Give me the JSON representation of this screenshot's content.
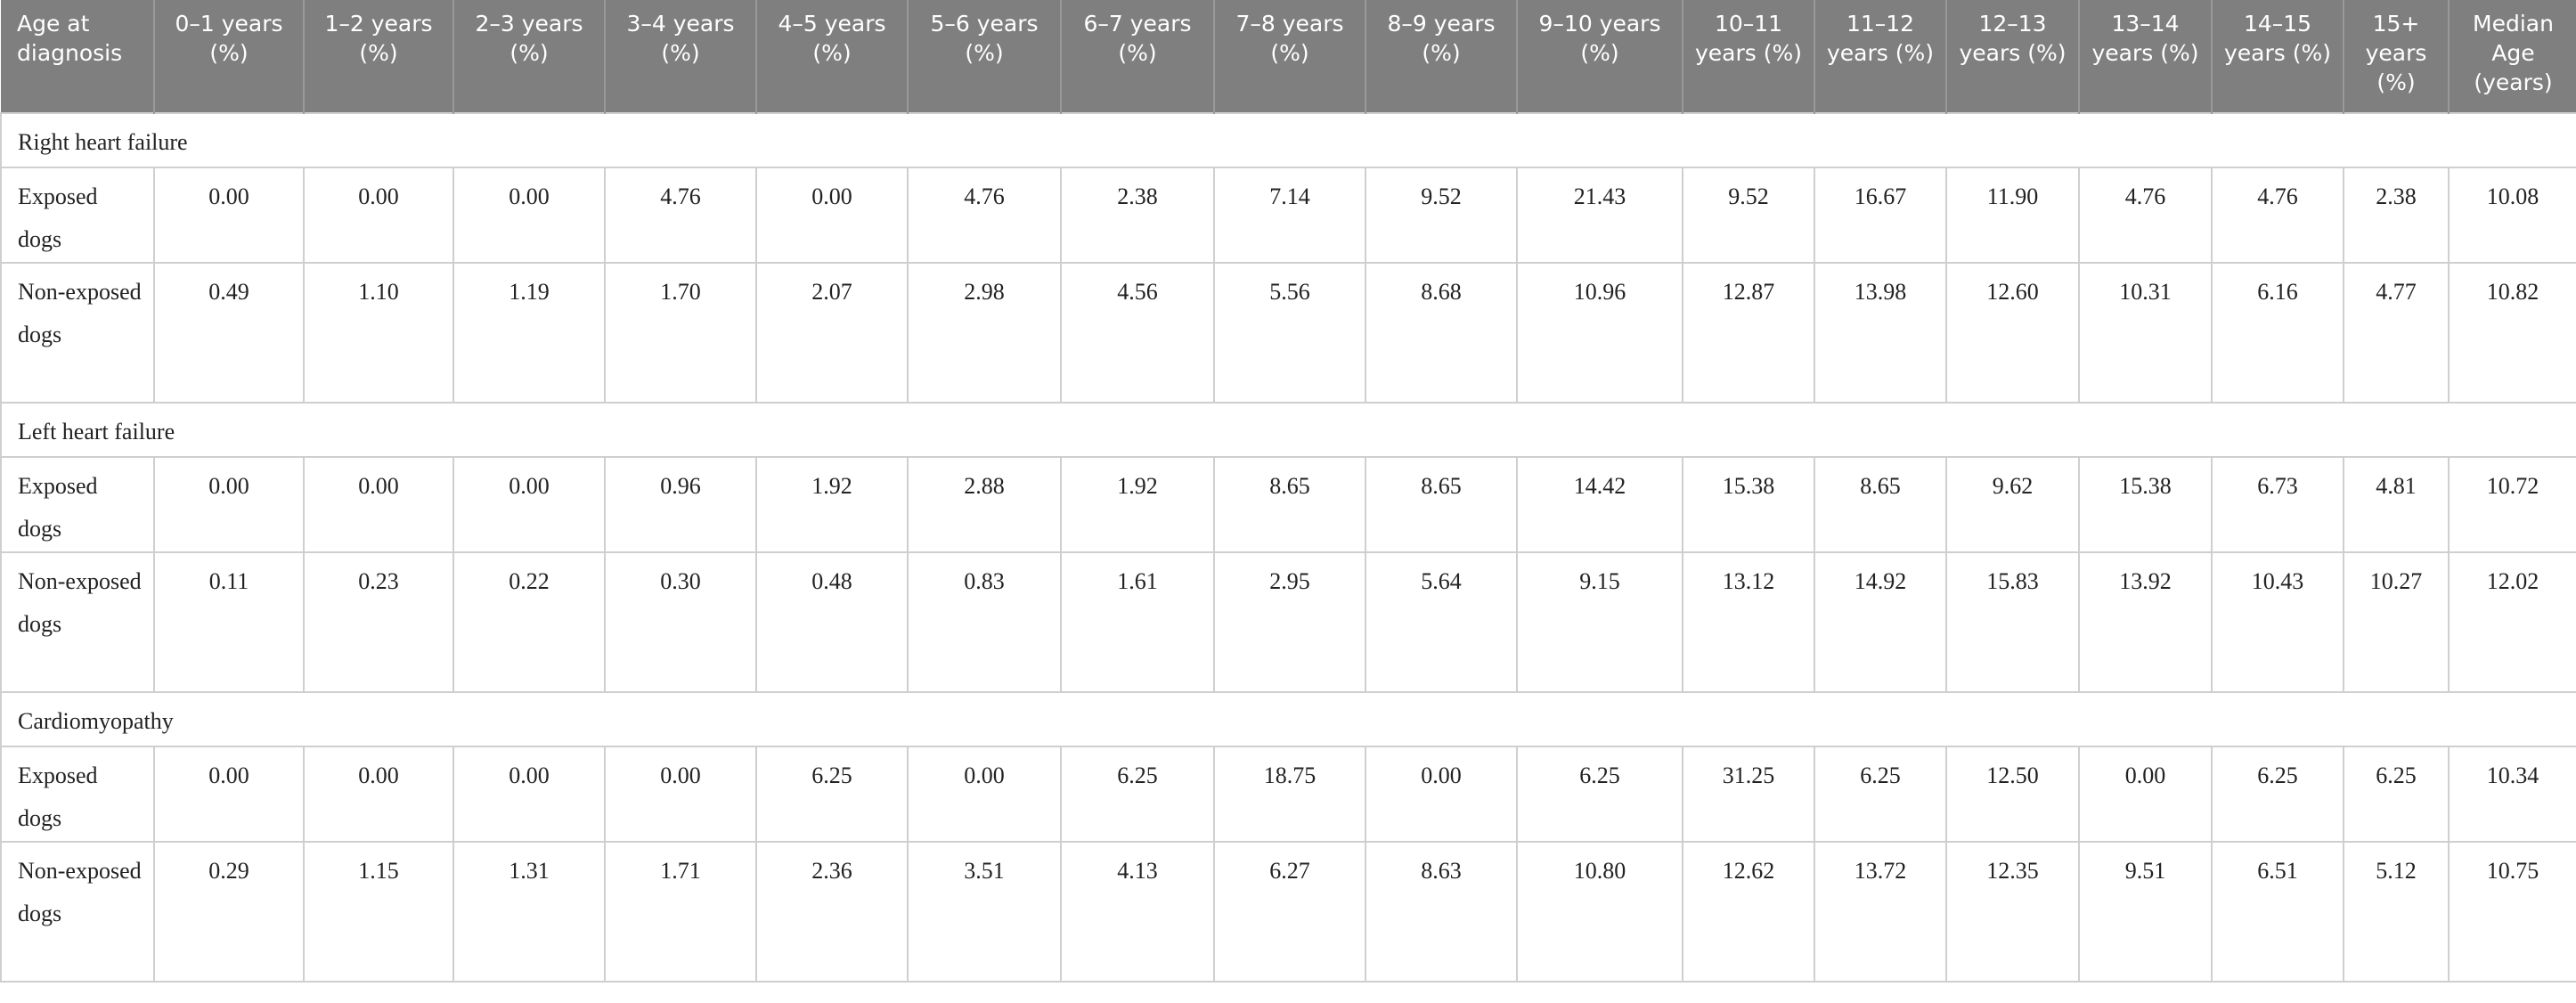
{
  "table": {
    "header": [
      "Age at diagnosis",
      "0–1 years (%)",
      "1–2 years (%)",
      "2–3 years (%)",
      "3–4 years (%)",
      "4–5 years (%)",
      "5–6 years (%)",
      "6–7 years (%)",
      "7–8 years (%)",
      "8–9 years (%)",
      "9–10 years (%)",
      "10–11 years (%)",
      "11–12 years (%)",
      "12–13 years (%)",
      "13–14 years (%)",
      "14–15 years (%)",
      "15+ years (%)",
      "Median Age (years)"
    ],
    "groups": [
      {
        "title": "Right heart failure",
        "rows": [
          [
            "Exposed dogs",
            "0.00",
            "0.00",
            "0.00",
            "4.76",
            "0.00",
            "4.76",
            "2.38",
            "7.14",
            "9.52",
            "21.43",
            "9.52",
            "16.67",
            "11.90",
            "4.76",
            "4.76",
            "2.38",
            "10.08"
          ],
          [
            "Non-exposed dogs",
            "0.49",
            "1.10",
            "1.19",
            "1.70",
            "2.07",
            "2.98",
            "4.56",
            "5.56",
            "8.68",
            "10.96",
            "12.87",
            "13.98",
            "12.60",
            "10.31",
            "6.16",
            "4.77",
            "10.82"
          ]
        ]
      },
      {
        "title": "Left heart failure",
        "rows": [
          [
            "Exposed dogs",
            "0.00",
            "0.00",
            "0.00",
            "0.96",
            "1.92",
            "2.88",
            "1.92",
            "8.65",
            "8.65",
            "14.42",
            "15.38",
            "8.65",
            "9.62",
            "15.38",
            "6.73",
            "4.81",
            "10.72"
          ],
          [
            "Non-exposed dogs",
            "0.11",
            "0.23",
            "0.22",
            "0.30",
            "0.48",
            "0.83",
            "1.61",
            "2.95",
            "5.64",
            "9.15",
            "13.12",
            "14.92",
            "15.83",
            "13.92",
            "10.43",
            "10.27",
            "12.02"
          ]
        ]
      },
      {
        "title": "Cardiomyopathy",
        "rows": [
          [
            "Exposed dogs",
            "0.00",
            "0.00",
            "0.00",
            "0.00",
            "6.25",
            "0.00",
            "6.25",
            "18.75",
            "0.00",
            "6.25",
            "31.25",
            "6.25",
            "12.50",
            "0.00",
            "6.25",
            "6.25",
            "10.34"
          ],
          [
            "Non-exposed dogs",
            "0.29",
            "1.15",
            "1.31",
            "1.71",
            "2.36",
            "3.51",
            "4.13",
            "6.27",
            "8.63",
            "10.80",
            "12.62",
            "13.72",
            "12.35",
            "9.51",
            "6.51",
            "5.12",
            "10.75"
          ]
        ]
      }
    ]
  }
}
